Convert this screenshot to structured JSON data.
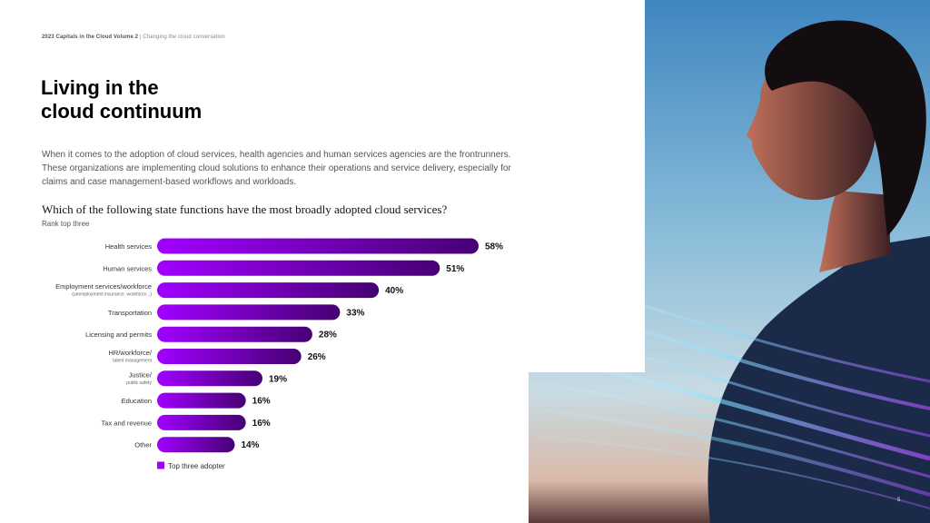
{
  "header": {
    "report_title": "2023 Capitals in the Cloud Volume 2",
    "separator": "|",
    "subtitle": "Changing the cloud conversation"
  },
  "title": {
    "line1": "Living in the",
    "line2": "cloud continuum"
  },
  "body_text": "When it comes to the adoption of cloud services, health agencies and human services agencies are the frontrunners. These organizations are implementing cloud solutions to enhance their operations and service delivery, especially for claims and case management-based workflows and workloads.",
  "question": "Which of the following state functions have the most broadly adopted cloud services?",
  "question_note": "Rank top three",
  "page_number": "5",
  "colors": {
    "bar_gradient_start": "#a100ff",
    "bar_gradient_end": "#460073",
    "legend": "#a100ff"
  },
  "chart_data": {
    "type": "bar",
    "orientation": "horizontal",
    "categories": [
      [
        "Health services"
      ],
      [
        "Human services"
      ],
      [
        "Employment services/workforce",
        "(unemployment insurance, workforce...)"
      ],
      [
        "Transportation"
      ],
      [
        "Licensing and permits"
      ],
      [
        "HR/workforce/",
        "talent management"
      ],
      [
        "Justice/",
        "public safety"
      ],
      [
        "Education"
      ],
      [
        "Tax and revenue"
      ],
      [
        "Other"
      ]
    ],
    "values": [
      58,
      51,
      40,
      33,
      28,
      26,
      19,
      16,
      16,
      14
    ],
    "value_suffix": "%",
    "series": [
      {
        "name": "Top three adopter",
        "values": [
          58,
          51,
          40,
          33,
          28,
          26,
          19,
          16,
          16,
          14
        ]
      }
    ],
    "legend": "Top three adopter",
    "xlim": [
      0,
      60
    ],
    "grid": false,
    "legend_position": "bottom-left"
  }
}
